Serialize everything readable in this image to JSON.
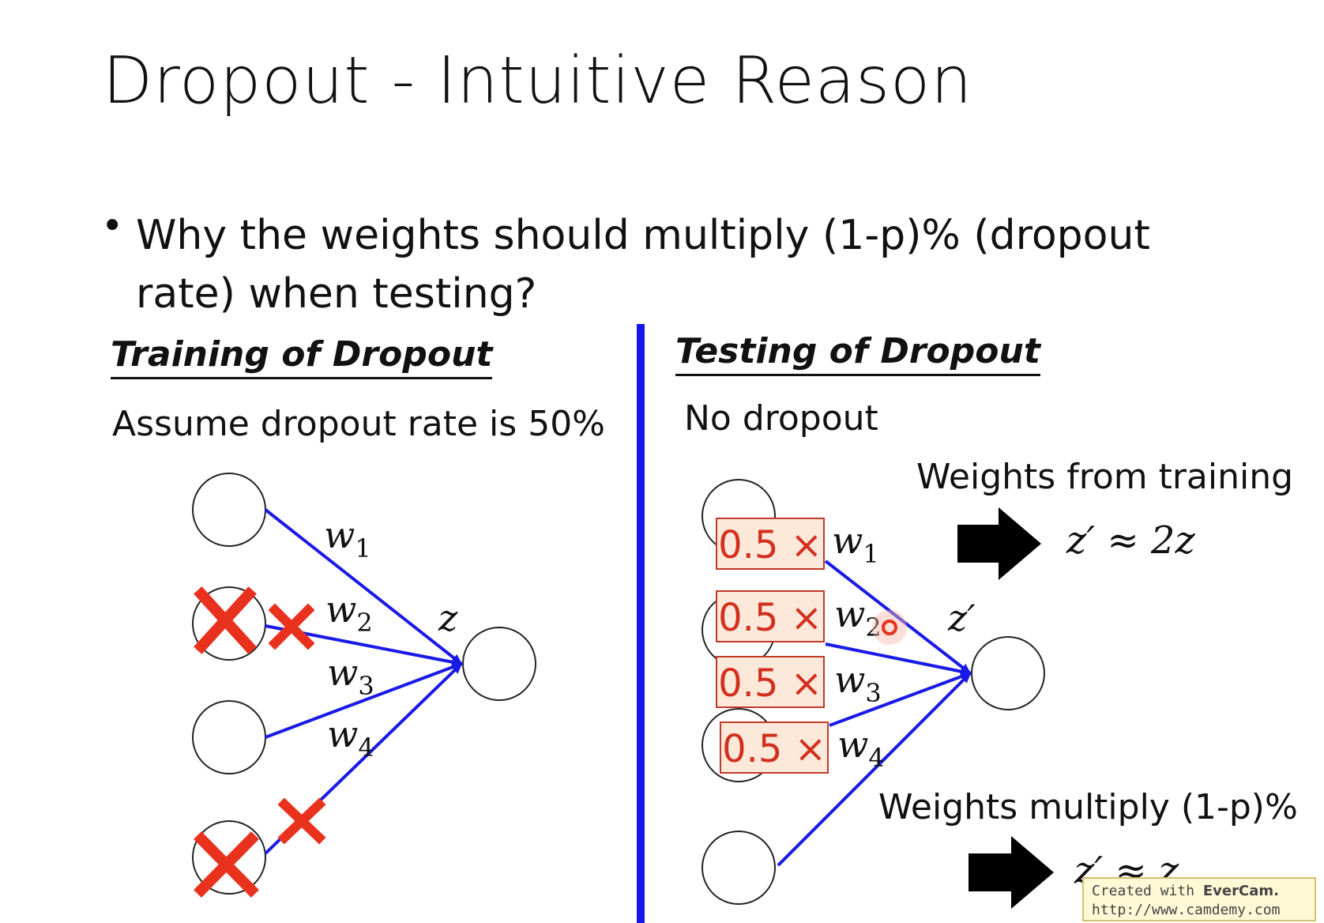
{
  "slide": {
    "title": "Dropout - Intuitive Reason",
    "bullet_symbol": "•",
    "question_line1": "Why the weights should multiply (1-p)% (dropout",
    "question_line2": "rate) when testing?"
  },
  "training": {
    "heading": "Training of Dropout",
    "subtitle": "Assume dropout rate is 50%",
    "weights": [
      "w",
      "w",
      "w",
      "w"
    ],
    "weight_indices": [
      "1",
      "2",
      "3",
      "4"
    ],
    "output_label": "z"
  },
  "testing": {
    "heading": "Testing of Dropout",
    "subtitle": "No dropout",
    "multiplier": "0.5 ×",
    "weights": [
      "w",
      "w",
      "w",
      "w"
    ],
    "weight_indices": [
      "1",
      "2",
      "3",
      "4"
    ],
    "output_label": "z′",
    "note1": "Weights from training",
    "result1": "z′ ≈ 2z",
    "note2": "Weights multiply (1-p)%",
    "result2": "z′ ≈ z"
  },
  "watermark": {
    "prefix": "Created with",
    "brand": "EverCam.",
    "url": "http://www.camdemy.com"
  },
  "colors": {
    "edge": "#1a1ae6",
    "divider": "#1515ee",
    "cross": "#e8321e",
    "multiplier_text": "#d32f1f",
    "multiplier_bg": "#fde9d9"
  }
}
